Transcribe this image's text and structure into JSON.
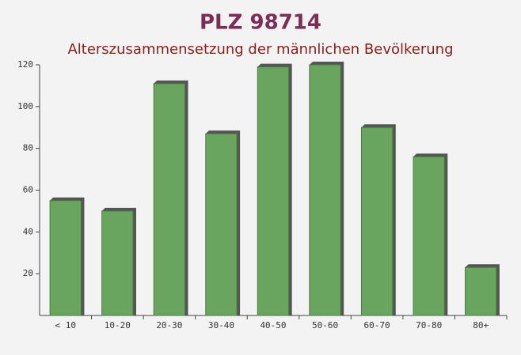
{
  "chart_data": {
    "type": "bar",
    "title": "PLZ 98714",
    "subtitle": "Alterszusammensetzung der männlichen Bevölkerung",
    "categories": [
      "< 10",
      "10-20",
      "20-30",
      "30-40",
      "40-50",
      "50-60",
      "60-70",
      "70-80",
      "80+"
    ],
    "values": [
      55,
      50,
      111,
      87,
      119,
      120,
      90,
      76,
      23
    ],
    "color": "#6aa55f",
    "ylim": [
      0,
      120
    ],
    "yticks": [
      20,
      40,
      60,
      80,
      100,
      120
    ]
  }
}
